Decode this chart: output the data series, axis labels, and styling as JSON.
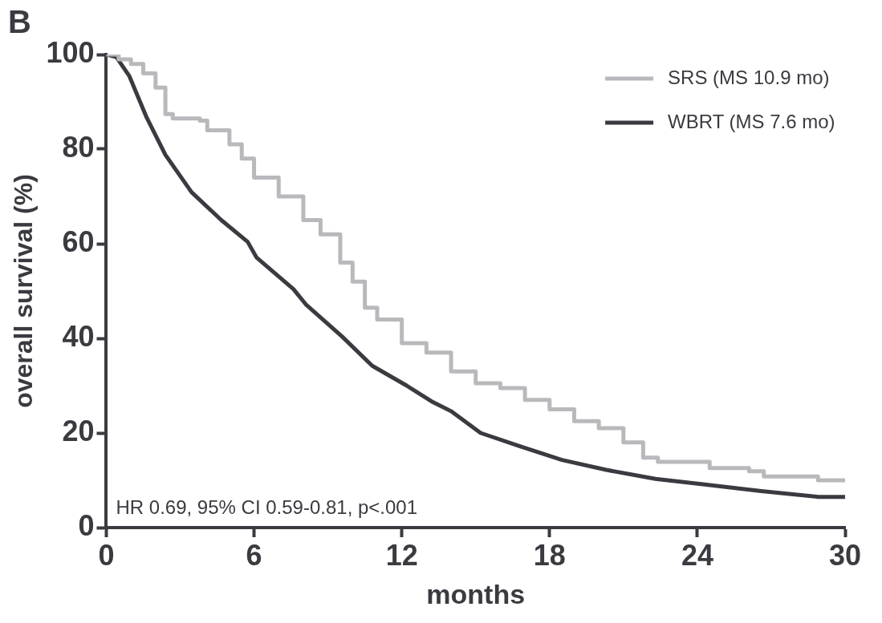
{
  "chart_data": {
    "type": "line",
    "title": "B",
    "xlabel": "months",
    "ylabel": "overall survival (%)",
    "xlim": [
      0,
      30
    ],
    "xticks": [
      0,
      6,
      12,
      18,
      24,
      30
    ],
    "ylim": [
      0,
      100
    ],
    "yticks": [
      0,
      20,
      40,
      60,
      80,
      100
    ],
    "grid": false,
    "legend": "top right",
    "marker": "none",
    "annotations": [
      "HR 0.69, 95% CI 0.59-0.81, p<.001"
    ],
    "series": [
      {
        "name": "SRS (MS 10.9 mo)",
        "type": "step",
        "color": "#b9b9bd",
        "x": [
          0,
          0.5,
          1,
          1.5,
          2,
          2.4,
          2.7,
          3.8,
          4.1,
          5,
          5.5,
          6,
          7,
          8,
          8.7,
          9.5,
          10,
          10.5,
          11,
          12,
          13,
          14,
          15,
          16,
          17,
          18,
          19,
          20,
          21,
          21.8,
          22.4,
          24.5,
          26.1,
          26.7,
          28.9,
          29.3,
          30
        ],
        "values": [
          100,
          100,
          99,
          98,
          96,
          93,
          87.4,
          86.5,
          86,
          84,
          81,
          78,
          74,
          70,
          65,
          62,
          56,
          52,
          46.5,
          44,
          39,
          37,
          33,
          30.5,
          29.5,
          27,
          25,
          22.5,
          21,
          18,
          14.8,
          13.9,
          12.6,
          11.9,
          10.8,
          10,
          10
        ]
      },
      {
        "name": "WBRT (MS 7.6 mo)",
        "type": "line",
        "color": "#3a3b40",
        "x": [
          0,
          0.4,
          0.93,
          1.62,
          2.4,
          3.46,
          4.67,
          5.74,
          6.1,
          7.6,
          8.1,
          9.57,
          10.8,
          12.2,
          13.2,
          14,
          15.2,
          16.8,
          18.5,
          20.3,
          22.3,
          24.3,
          26.6,
          28.9,
          30
        ],
        "values": [
          100,
          99.5,
          95.5,
          86.9,
          78.8,
          70.9,
          65,
          60.4,
          57.1,
          50.4,
          47.2,
          40.4,
          34.2,
          30,
          26.7,
          24.6,
          20,
          17.2,
          14.3,
          12.2,
          10.3,
          9.1,
          7.7,
          6.5,
          6.5
        ]
      }
    ]
  }
}
